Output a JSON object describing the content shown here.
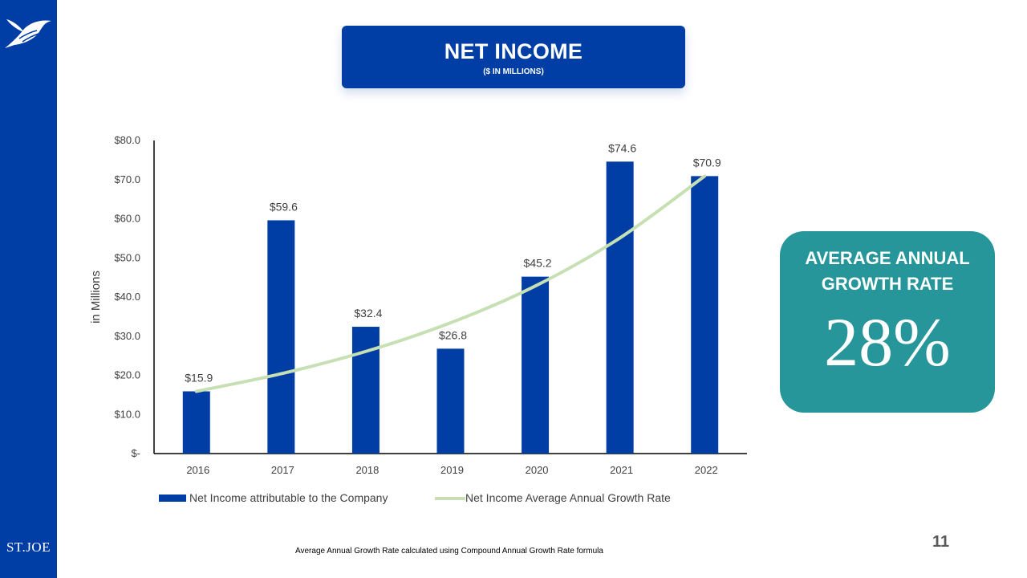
{
  "title": "NET INCOME",
  "subtitle": "($ IN MILLIONS)",
  "brand": "ST.JOE",
  "growth_card": {
    "heading": "AVERAGE ANNUAL GROWTH RATE",
    "value": "28%"
  },
  "footnote": "Average Annual Growth Rate calculated using Compound Annual Growth Rate formula",
  "page_number": "11",
  "colors": {
    "brand_blue": "#003DA5",
    "trend_green": "#C6E0B4",
    "card_teal": "#26969A"
  },
  "chart_data": {
    "type": "bar",
    "title": "",
    "xlabel": "",
    "ylabel": "in Millions",
    "ylim": [
      0,
      80
    ],
    "yticks": [
      {
        "value": 0,
        "label": "$-"
      },
      {
        "value": 10,
        "label": "$10.0"
      },
      {
        "value": 20,
        "label": "$20.0"
      },
      {
        "value": 30,
        "label": "$30.0"
      },
      {
        "value": 40,
        "label": "$40.0"
      },
      {
        "value": 50,
        "label": "$50.0"
      },
      {
        "value": 60,
        "label": "$60.0"
      },
      {
        "value": 70,
        "label": "$70.0"
      },
      {
        "value": 80,
        "label": "$80.0"
      }
    ],
    "categories": [
      "2016",
      "2017",
      "2018",
      "2019",
      "2020",
      "2021",
      "2022"
    ],
    "series": [
      {
        "name": "Net Income attributable to the Company",
        "type": "bar",
        "values": [
          15.9,
          59.6,
          32.4,
          26.8,
          45.2,
          74.6,
          70.9
        ],
        "labels": [
          "$15.9",
          "$59.6",
          "$32.4",
          "$26.8",
          "$45.2",
          "$74.6",
          "$70.9"
        ]
      },
      {
        "name": "Net Income Average Annual Growth Rate",
        "type": "line",
        "values": [
          15.9,
          20.4,
          26.1,
          33.4,
          42.8,
          55.1,
          70.9
        ]
      }
    ],
    "legend": "bottom",
    "grid": false
  }
}
